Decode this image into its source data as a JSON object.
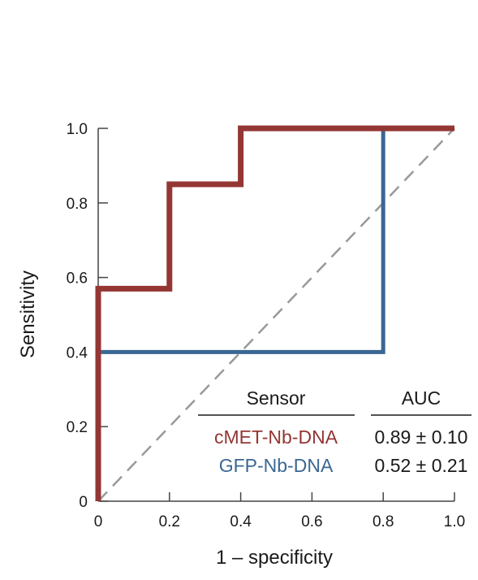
{
  "chart_data": {
    "type": "line",
    "xlabel": "1 – specificity",
    "ylabel": "Sensitivity",
    "xlim": [
      0,
      1
    ],
    "ylim": [
      0,
      1
    ],
    "x_ticks": [
      "0",
      "0.2",
      "0.4",
      "0.6",
      "0.8",
      "1.0"
    ],
    "y_ticks": [
      "0",
      "0.2",
      "0.4",
      "0.6",
      "0.8",
      "1.0"
    ],
    "grid": false,
    "reference_line": {
      "style": "dashed",
      "color": "#999999",
      "points": [
        [
          0,
          0
        ],
        [
          1,
          1
        ]
      ]
    },
    "series": [
      {
        "name": "cMET-Nb-DNA",
        "color": "#943634",
        "auc": "0.89 ± 0.10",
        "points": [
          [
            0,
            0
          ],
          [
            0,
            0.57
          ],
          [
            0.2,
            0.57
          ],
          [
            0.2,
            0.85
          ],
          [
            0.4,
            0.85
          ],
          [
            0.4,
            1.0
          ],
          [
            1.0,
            1.0
          ]
        ]
      },
      {
        "name": "GFP-Nb-DNA",
        "color": "#3a6793",
        "auc": "0.52 ± 0.21",
        "points": [
          [
            0,
            0
          ],
          [
            0,
            0.4
          ],
          [
            0.8,
            0.4
          ],
          [
            0.8,
            1.0
          ],
          [
            1.0,
            1.0
          ]
        ]
      }
    ],
    "legend": {
      "placement": "bottom-right",
      "header_sensor": "Sensor",
      "header_auc": "AUC"
    }
  }
}
